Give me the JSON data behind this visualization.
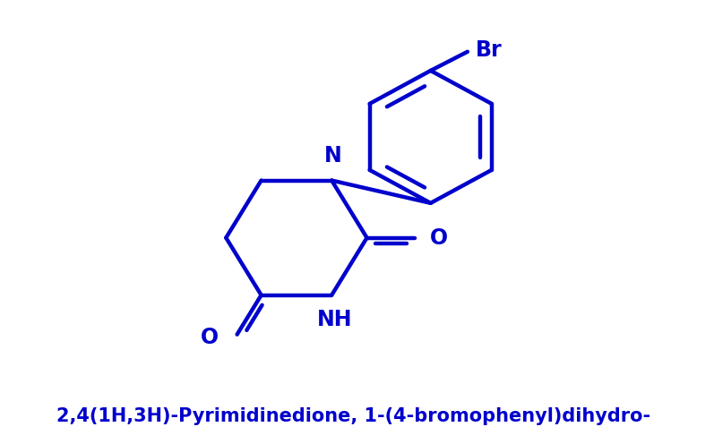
{
  "color": "#0000CC",
  "bg_color": "#FFFFFF",
  "title": "2,4(1H,3H)-Pyrimidinedione, 1-(4-bromophenyl)dihydro-",
  "title_fontsize": 15,
  "line_width": 3.2,
  "figure_width": 7.97,
  "figure_height": 4.96,
  "dpi": 100,
  "xlim": [
    0,
    10
  ],
  "ylim": [
    0,
    7
  ]
}
